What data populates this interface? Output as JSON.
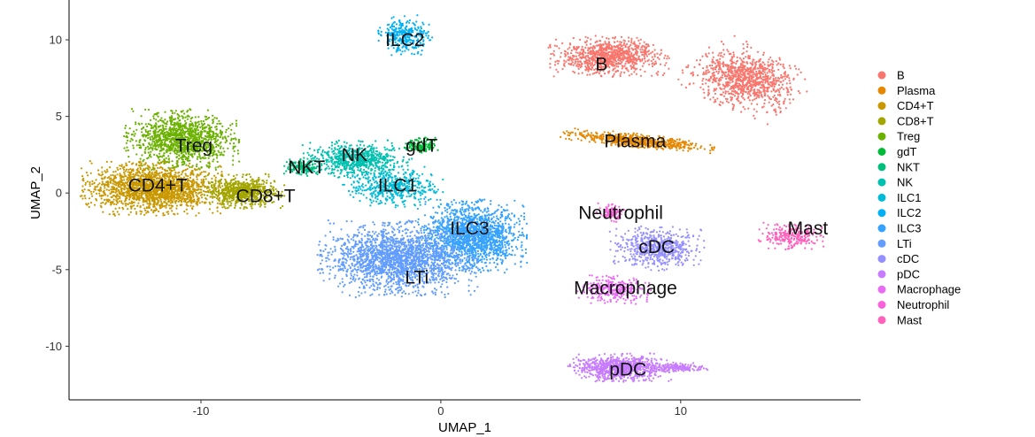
{
  "chart_data": {
    "type": "scatter",
    "xlabel": "UMAP_1",
    "ylabel": "UMAP_2",
    "xlim": [
      -15.5,
      17.5
    ],
    "ylim": [
      -13.5,
      12.6
    ],
    "xticks": [
      -10,
      0,
      10
    ],
    "yticks": [
      -10,
      -5,
      0,
      5,
      10
    ],
    "xtick_labels": [
      "-10",
      "0",
      "10"
    ],
    "ytick_labels": [
      "-10",
      "-5",
      "0",
      "5",
      "10"
    ],
    "grid": false,
    "legend_position": "right",
    "clusters": [
      {
        "name": "B",
        "color": "#F8766D",
        "label": "B",
        "blobs": [
          {
            "cx": 7.0,
            "cy": 8.9,
            "rx": 2.4,
            "ry": 1.3,
            "n": 900
          },
          {
            "cx": 12.7,
            "cy": 7.4,
            "rx": 2.4,
            "ry": 1.9,
            "angle": -38,
            "n": 1000
          }
        ],
        "label_pos": [
          6.7,
          8.4
        ]
      },
      {
        "name": "Plasma",
        "color": "#E58700",
        "label": "Plasma",
        "blobs": [
          {
            "cx": 8.2,
            "cy": 3.4,
            "rx": 3.1,
            "ry": 0.45,
            "angle": -9,
            "n": 600
          }
        ],
        "label_pos": [
          8.1,
          3.4
        ]
      },
      {
        "name": "CD4+T",
        "color": "#C99800",
        "label": "CD4+T",
        "blobs": [
          {
            "cx": -12.0,
            "cy": 0.3,
            "rx": 2.9,
            "ry": 1.7,
            "n": 1800
          }
        ],
        "label_pos": [
          -11.8,
          0.5
        ]
      },
      {
        "name": "CD8+T",
        "color": "#A3A500",
        "label": "CD8+T",
        "blobs": [
          {
            "cx": -8.3,
            "cy": 0.1,
            "rx": 1.7,
            "ry": 1.1,
            "n": 700
          }
        ],
        "label_pos": [
          -7.3,
          -0.2
        ]
      },
      {
        "name": "Treg",
        "color": "#6BB100",
        "label": "Treg",
        "blobs": [
          {
            "cx": -10.8,
            "cy": 3.5,
            "rx": 2.3,
            "ry": 1.9,
            "n": 1200
          }
        ],
        "label_pos": [
          -10.3,
          3.1
        ]
      },
      {
        "name": "gdT",
        "color": "#00BA38",
        "label": "gdT",
        "blobs": [
          {
            "cx": -0.8,
            "cy": 3.1,
            "rx": 0.7,
            "ry": 0.5,
            "n": 150
          }
        ],
        "label_pos": [
          -0.8,
          3.1
        ]
      },
      {
        "name": "NKT",
        "color": "#00BF7D",
        "label": "NKT",
        "blobs": [
          {
            "cx": -5.8,
            "cy": 1.7,
            "rx": 0.8,
            "ry": 0.6,
            "n": 150
          }
        ],
        "label_pos": [
          -5.6,
          1.7
        ]
      },
      {
        "name": "NK",
        "color": "#00C0AF",
        "label": "NK",
        "blobs": [
          {
            "cx": -3.5,
            "cy": 2.2,
            "rx": 2.2,
            "ry": 1.2,
            "n": 700
          }
        ],
        "label_pos": [
          -3.6,
          2.5
        ]
      },
      {
        "name": "ILC1",
        "color": "#00BCD8",
        "label": "ILC1",
        "blobs": [
          {
            "cx": -2.0,
            "cy": 0.4,
            "rx": 2.0,
            "ry": 1.3,
            "n": 500
          }
        ],
        "label_pos": [
          -1.8,
          0.5
        ]
      },
      {
        "name": "ILC2",
        "color": "#00B0F6",
        "label": "ILC2",
        "blobs": [
          {
            "cx": -1.5,
            "cy": 10.3,
            "rx": 1.1,
            "ry": 1.3,
            "n": 300
          }
        ],
        "label_pos": [
          -1.5,
          10.0
        ]
      },
      {
        "name": "ILC3",
        "color": "#35A2FF",
        "label": "ILC3",
        "blobs": [
          {
            "cx": 1.3,
            "cy": -2.8,
            "rx": 2.2,
            "ry": 2.3,
            "n": 1600
          }
        ],
        "label_pos": [
          1.2,
          -2.3
        ]
      },
      {
        "name": "LTi",
        "color": "#619CFF",
        "label": "LTi",
        "blobs": [
          {
            "cx": -1.8,
            "cy": -4.3,
            "rx": 3.2,
            "ry": 2.4,
            "n": 2000
          }
        ],
        "label_pos": [
          -1.0,
          -5.5
        ]
      },
      {
        "name": "cDC",
        "color": "#9590FF",
        "label": "cDC",
        "blobs": [
          {
            "cx": 9.0,
            "cy": -3.6,
            "rx": 1.9,
            "ry": 1.4,
            "n": 600
          }
        ],
        "label_pos": [
          9.0,
          -3.5
        ]
      },
      {
        "name": "pDC",
        "color": "#C77CFF",
        "label": "pDC",
        "blobs": [
          {
            "cx": 7.5,
            "cy": -11.4,
            "rx": 2.1,
            "ry": 0.9,
            "n": 900
          },
          {
            "cx": 10.0,
            "cy": -11.4,
            "rx": 1.1,
            "ry": 0.3,
            "n": 150
          }
        ],
        "label_pos": [
          7.8,
          -11.5
        ]
      },
      {
        "name": "Macrophage",
        "color": "#E76BF3",
        "label": "Macrophage",
        "blobs": [
          {
            "cx": 7.2,
            "cy": -6.3,
            "rx": 1.5,
            "ry": 0.9,
            "n": 300
          }
        ],
        "label_pos": [
          7.7,
          -6.2
        ]
      },
      {
        "name": "Neutrophil",
        "color": "#FA62DB",
        "label": "Neutrophil",
        "blobs": [
          {
            "cx": 7.1,
            "cy": -1.3,
            "rx": 0.6,
            "ry": 0.6,
            "n": 100
          }
        ],
        "label_pos": [
          7.5,
          -1.3
        ]
      },
      {
        "name": "Mast",
        "color": "#FF62BC",
        "label": "Mast",
        "blobs": [
          {
            "cx": 14.6,
            "cy": -2.8,
            "rx": 1.3,
            "ry": 0.9,
            "n": 250
          }
        ],
        "label_pos": [
          15.3,
          -2.3
        ]
      }
    ]
  }
}
